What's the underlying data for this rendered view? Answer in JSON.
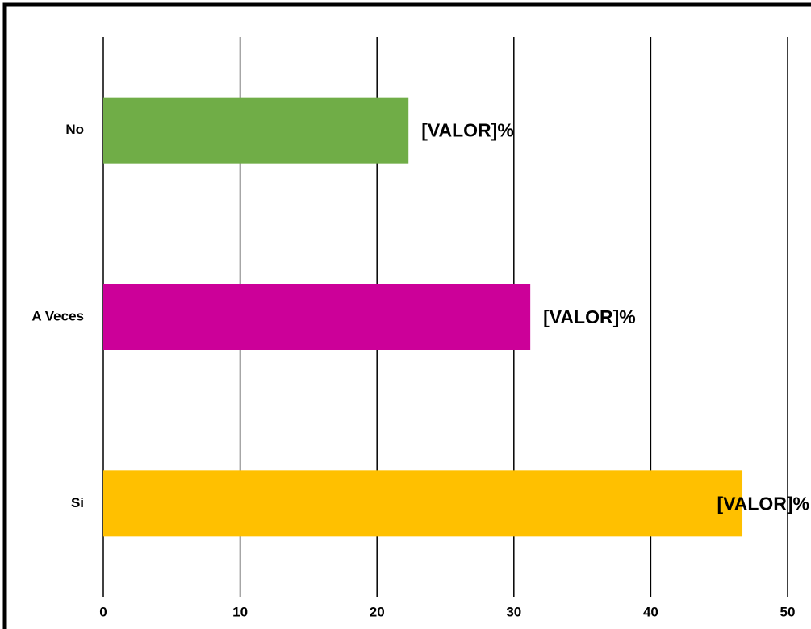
{
  "chart_data": {
    "type": "bar",
    "orientation": "horizontal",
    "categories": [
      "No",
      "A Veces",
      "Si"
    ],
    "values": [
      22.3,
      31.2,
      46.7
    ],
    "data_labels": [
      "[VALOR]%",
      "[VALOR]%",
      "[VALOR]%"
    ],
    "colors": [
      "#70AD47",
      "#CC0099",
      "#FFC000"
    ],
    "xlim": [
      0,
      50
    ],
    "x_ticks": [
      "0",
      "10",
      "20",
      "30",
      "40",
      "50"
    ],
    "grid": "vertical",
    "title": "",
    "xlabel": "",
    "ylabel": "",
    "legend": "none"
  }
}
